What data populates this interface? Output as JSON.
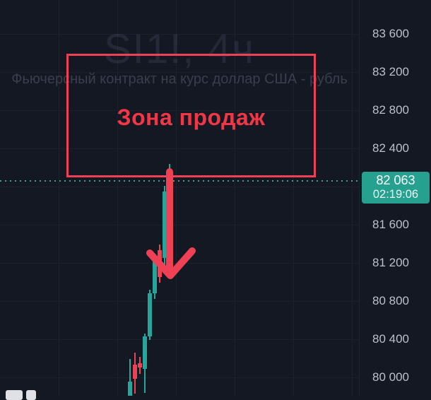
{
  "watermark": {
    "symbol_title": "SI1!, 4ч",
    "description": "Фьючерсный контракт на курс доллар США - рубль"
  },
  "annotation": {
    "zone_label": "Зона продаж",
    "color": "#f23645"
  },
  "price_label": {
    "price": "82 063",
    "countdown": "02:19:06",
    "bg_color": "#26a08f"
  },
  "chart_data": {
    "type": "candlestick",
    "title": "SI1!, 4ч",
    "subtitle": "Фьючерсный контракт на курс доллар США - рубль",
    "timeframe": "4h",
    "last_price": 82063,
    "up_color": "#26a69a",
    "down_color": "#ef4155",
    "price_line_color": "#3aa192",
    "ylim": [
      79810,
      83956
    ],
    "grid": true,
    "axis_ticks": [
      {
        "label": "83 600",
        "value": 83600
      },
      {
        "label": "83 200",
        "value": 83200
      },
      {
        "label": "82 800",
        "value": 82800
      },
      {
        "label": "82 400",
        "value": 82400
      },
      {
        "label": "81 600",
        "value": 81600
      },
      {
        "label": "81 200",
        "value": 81200
      },
      {
        "label": "80 800",
        "value": 80800
      },
      {
        "label": "80 400",
        "value": 80400
      },
      {
        "label": "80 000",
        "value": 80000
      }
    ],
    "grid_price_lines": [
      83600,
      83200,
      82800,
      82400,
      82000,
      81600,
      81200,
      80800,
      80400,
      80000
    ],
    "candles": [
      {
        "x": 184,
        "open": 79700,
        "high": 80190,
        "low": 79650,
        "close": 79955
      },
      {
        "x": 191,
        "open": 80130,
        "high": 80260,
        "low": 79830,
        "close": 79985
      },
      {
        "x": 198,
        "open": 80145,
        "high": 80215,
        "low": 80035,
        "close": 80100
      },
      {
        "x": 205,
        "open": 80090,
        "high": 80460,
        "low": 79840,
        "close": 80430
      },
      {
        "x": 212,
        "open": 80430,
        "high": 80920,
        "low": 80390,
        "close": 80880
      },
      {
        "x": 219,
        "open": 80880,
        "high": 81300,
        "low": 80820,
        "close": 81250
      },
      {
        "x": 226,
        "open": 81330,
        "high": 81395,
        "low": 80990,
        "close": 81050
      },
      {
        "x": 233,
        "open": 81250,
        "high": 82010,
        "low": 81120,
        "close": 81950
      },
      {
        "x": 240,
        "open": 81950,
        "high": 82235,
        "low": 81870,
        "close": 82063
      }
    ]
  }
}
